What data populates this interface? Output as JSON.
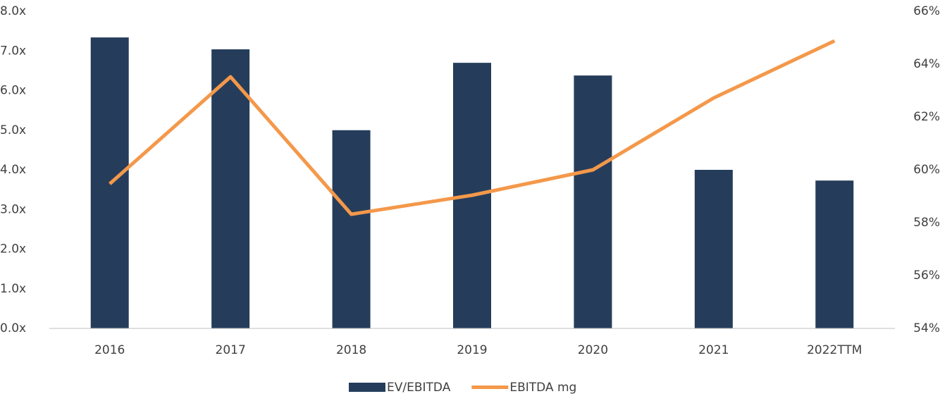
{
  "chart_data": {
    "type": "bar_line",
    "categories": [
      "2016",
      "2017",
      "2018",
      "2019",
      "2020",
      "2021",
      "2022TTM"
    ],
    "series": [
      {
        "name": "EV/EBITDA",
        "color": "#253d5b",
        "type": "bar",
        "values": [
          7.34,
          7.04,
          5.0,
          6.7,
          6.38,
          4.0,
          3.73
        ]
      },
      {
        "name": "EBITDA mg",
        "color": "#f4984a",
        "type": "line",
        "axis": "y2",
        "values": [
          59.47,
          63.52,
          58.32,
          59.04,
          60.0,
          62.72,
          64.88
        ]
      }
    ],
    "ylim": [
      0,
      8
    ],
    "yticks": [
      {
        "value": 0,
        "label": "0.0x"
      },
      {
        "value": 1,
        "label": "1.0x"
      },
      {
        "value": 2,
        "label": "2.0x"
      },
      {
        "value": 3,
        "label": "3.0x"
      },
      {
        "value": 4,
        "label": "4.0x"
      },
      {
        "value": 5,
        "label": "5.0x"
      },
      {
        "value": 6,
        "label": "6.0x"
      },
      {
        "value": 7,
        "label": "7.0x"
      },
      {
        "value": 8,
        "label": "8.0x"
      }
    ],
    "y2lim": [
      54,
      66
    ],
    "y2ticks": [
      {
        "value": 54,
        "label": "54%"
      },
      {
        "value": 56,
        "label": "56%"
      },
      {
        "value": 58,
        "label": "58%"
      },
      {
        "value": 60,
        "label": "60%"
      },
      {
        "value": 62,
        "label": "62%"
      },
      {
        "value": 64,
        "label": "64%"
      },
      {
        "value": 66,
        "label": "66%"
      }
    ],
    "grid": false,
    "legend": "bottom"
  }
}
